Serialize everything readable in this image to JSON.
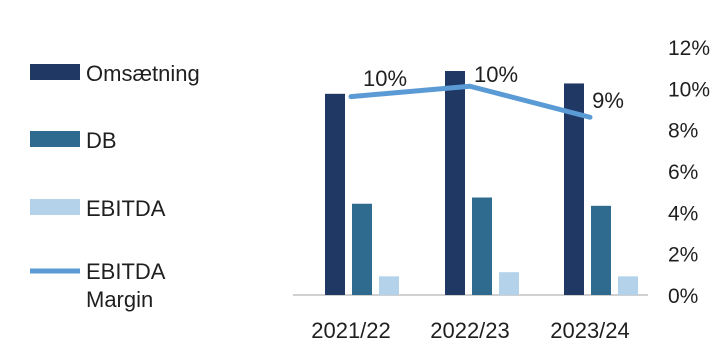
{
  "chart_data": {
    "type": "bar",
    "categories": [
      "2021/22",
      "2022/23",
      "2023/24"
    ],
    "series": [
      {
        "name": "Omsætning",
        "kind": "bar",
        "values": [
          97,
          108,
          102
        ],
        "color": "#1f3864"
      },
      {
        "name": "DB",
        "kind": "bar",
        "values": [
          44,
          47,
          43
        ],
        "color": "#2e6b8f"
      },
      {
        "name": "EBITDA",
        "kind": "bar",
        "values": [
          9,
          11,
          9
        ],
        "color": "#b4d3ea"
      },
      {
        "name": "EBITDA Margin",
        "kind": "line",
        "axis": "right",
        "values": [
          9.6,
          10.1,
          8.6
        ],
        "labels": [
          "10%",
          "10%",
          "9%"
        ],
        "color": "#5b9bd5"
      }
    ],
    "y_right": {
      "ticks": [
        "0%",
        "2%",
        "4%",
        "6%",
        "8%",
        "10%",
        "12%"
      ],
      "tick_values": [
        0,
        2,
        4,
        6,
        8,
        10,
        12
      ],
      "range": [
        0,
        12
      ]
    },
    "y_left_range": [
      0,
      112
    ],
    "legend_position": "left",
    "grid": false
  }
}
